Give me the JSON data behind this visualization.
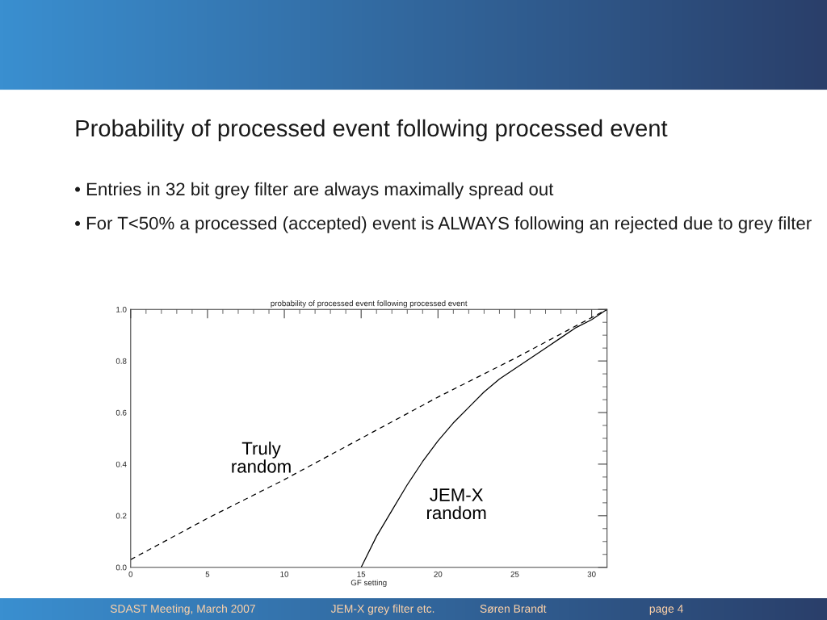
{
  "chart_data": {
    "type": "line",
    "title": "Probability of processed event following processed event",
    "subtitle": "probability of processed event following processed event",
    "xlabel": "GF setting",
    "annotations": [
      "• Entries in 32 bit grey filter are always maximally spread out",
      "• For T<50% a processed (accepted) event is ALWAYS following an rejected due to grey filter",
      "SDAST Meeting, March 2007",
      "JEM-X grey filter etc.",
      "Søren Brandt",
      "page 4"
    ],
    "series": [
      {
        "name": "Truly\nrandom",
        "color": "#000000",
        "line_style": "dashed",
        "x": [
          0,
          5,
          10,
          15,
          20,
          25,
          31
        ],
        "values": [
          0.03,
          0.19,
          0.34,
          0.5,
          0.66,
          0.81,
          1.0
        ]
      },
      {
        "name": "JEM-X\nrandom",
        "color": "#000000",
        "line_style": "solid",
        "x": [
          15,
          16,
          17,
          18,
          19,
          20,
          21,
          22,
          23,
          24,
          25,
          26,
          27,
          28,
          29,
          30,
          31
        ],
        "values": [
          0,
          0.12,
          0.22,
          0.32,
          0.41,
          0.49,
          0.56,
          0.62,
          0.68,
          0.73,
          0.77,
          0.81,
          0.85,
          0.89,
          0.93,
          0.96,
          1.0
        ]
      }
    ],
    "xlim": [
      0,
      31
    ],
    "ylim": [
      0,
      1
    ],
    "xticks": [
      0,
      5,
      10,
      15,
      20,
      25,
      30
    ],
    "yticks": [
      {
        "value": 0,
        "label": "0.0"
      },
      {
        "value": 0.2,
        "label": "0.2"
      },
      {
        "value": 0.4,
        "label": "0.4"
      },
      {
        "value": 0.6,
        "label": "0.6"
      },
      {
        "value": 0.8,
        "label": "0.8"
      },
      {
        "value": 1,
        "label": "1.0"
      }
    ],
    "grid": false,
    "legend": false,
    "marker": "none"
  }
}
